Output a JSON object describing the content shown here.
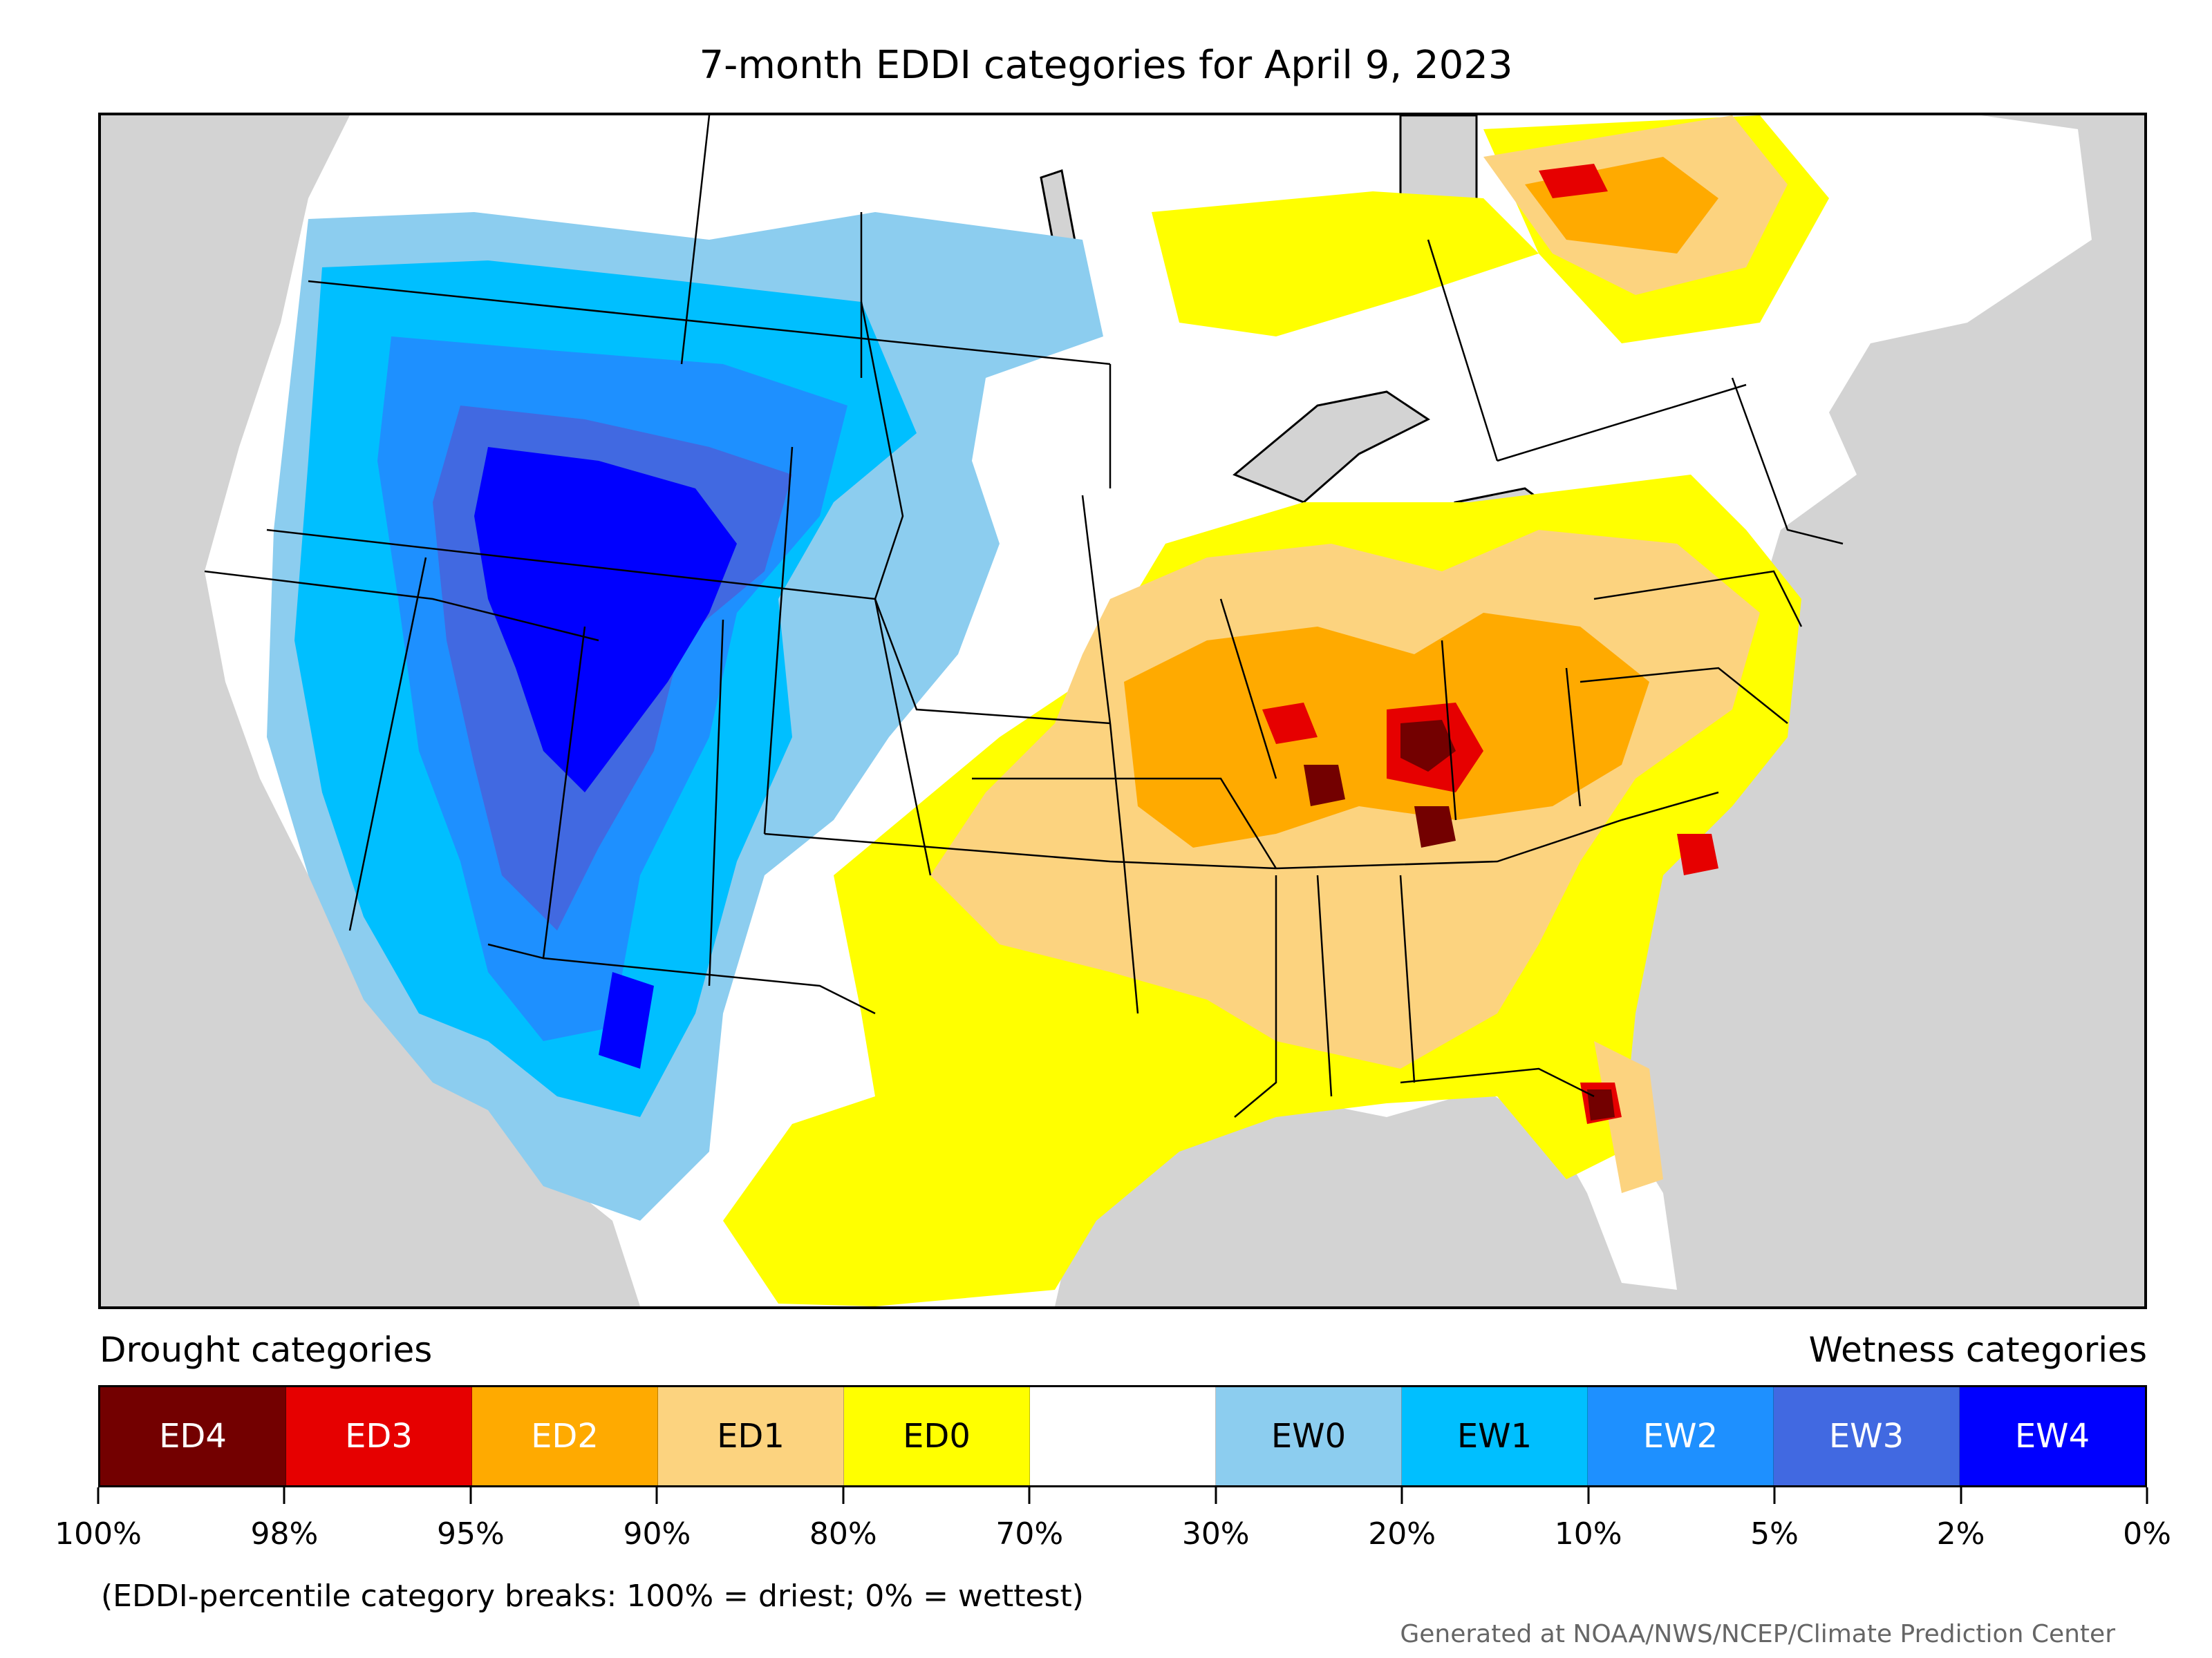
{
  "title": "7-month EDDI categories for April 9, 2023",
  "legend": {
    "drought_label": "Drought categories",
    "wetness_label": "Wetness categories",
    "categories": [
      {
        "label": "ED4",
        "color": "#730000",
        "text_color": "#ffffff"
      },
      {
        "label": "ED3",
        "color": "#e60000",
        "text_color": "#ffffff"
      },
      {
        "label": "ED2",
        "color": "#ffaa00",
        "text_color": "#ffffff"
      },
      {
        "label": "ED1",
        "color": "#fcd37f",
        "text_color": "#000000"
      },
      {
        "label": "ED0",
        "color": "#ffff00",
        "text_color": "#000000"
      },
      {
        "label": "",
        "color": "#ffffff",
        "text_color": "#000000"
      },
      {
        "label": "EW0",
        "color": "#8ccdef",
        "text_color": "#000000"
      },
      {
        "label": "EW1",
        "color": "#00bfff",
        "text_color": "#000000"
      },
      {
        "label": "EW2",
        "color": "#1e90ff",
        "text_color": "#ffffff"
      },
      {
        "label": "EW3",
        "color": "#4169e1",
        "text_color": "#ffffff"
      },
      {
        "label": "EW4",
        "color": "#0000ff",
        "text_color": "#ffffff"
      }
    ],
    "tick_labels": [
      "100%",
      "98%",
      "95%",
      "90%",
      "80%",
      "70%",
      "30%",
      "20%",
      "10%",
      "5%",
      "2%",
      "0%"
    ]
  },
  "note": "(EDDI-percentile category breaks: 100% = driest; 0% = wettest)",
  "credit": "Generated at NOAA/NWS/NCEP/Climate Prediction Center",
  "map": {
    "background_color": "#d3d3d3",
    "land_color": "#ffffff",
    "boundary_color": "#000000"
  }
}
